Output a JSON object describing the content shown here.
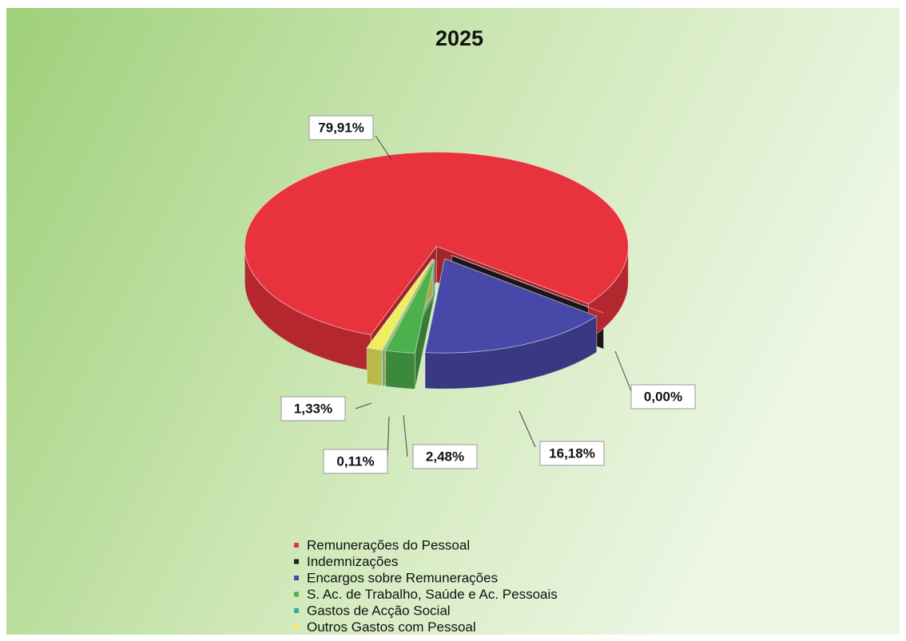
{
  "chart_data": {
    "type": "pie",
    "title": "2025",
    "categories": [
      "Remunerações do Pessoal",
      "Indemnizações",
      "Encargos sobre Remunerações",
      "S. Ac. de Trabalho, Saúde e Ac. Pessoais",
      "Gastos de Acção Social",
      "Outros Gastos com Pessoal"
    ],
    "values": [
      79.91,
      0.0,
      16.18,
      2.48,
      0.11,
      1.33
    ],
    "value_labels": [
      "79,91%",
      "0,00%",
      "16,18%",
      "2,48%",
      "0,11%",
      "1,33%"
    ],
    "colors": [
      "#e8323c",
      "#2a1e1e",
      "#4848a8",
      "#4cb04c",
      "#38a8a8",
      "#eeee60"
    ],
    "legend": "bottom"
  }
}
